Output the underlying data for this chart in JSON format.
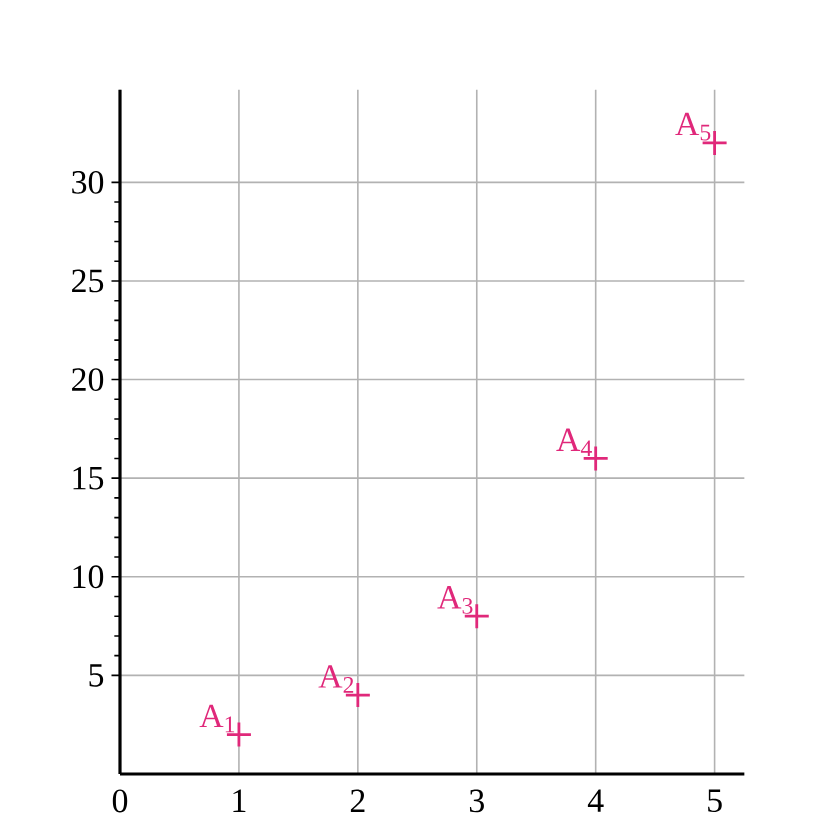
{
  "chart_data": {
    "type": "scatter",
    "x": [
      1,
      2,
      3,
      4,
      5
    ],
    "values": [
      2,
      4,
      8,
      16,
      32
    ],
    "color": "#e0287a",
    "marker": "cross",
    "grid": true,
    "xlim": [
      0,
      5.25
    ],
    "ylim": [
      0,
      34.7
    ],
    "xticks": [
      0,
      1,
      2,
      3,
      4,
      5
    ],
    "yticks": [
      5,
      10,
      15,
      20,
      25,
      30
    ],
    "annotations": [
      {
        "text": "A$_{1}$",
        "x": 1,
        "y": 2
      },
      {
        "text": "A$_{2}$",
        "x": 2,
        "y": 4
      },
      {
        "text": "A$_{3}$",
        "x": 3,
        "y": 8
      },
      {
        "text": "A$_{4}$",
        "x": 4,
        "y": 16
      },
      {
        "text": "A$_{5}$",
        "x": 5,
        "y": 32
      }
    ]
  }
}
